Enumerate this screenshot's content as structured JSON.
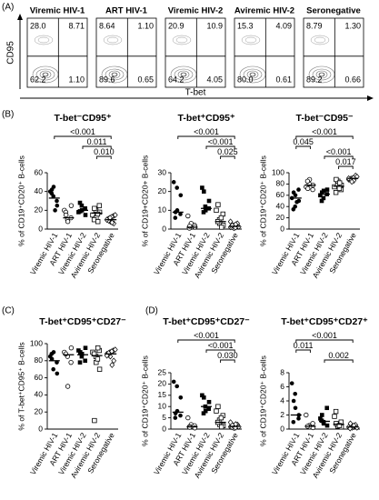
{
  "panel_labels": [
    "(A)",
    "(B)",
    "(C)",
    "(D)"
  ],
  "flow": {
    "y_axis_label": "CD95",
    "x_axis_label": "T-bet",
    "plots": [
      {
        "title": "Viremic HIV-1",
        "quadrants": [
          "28.0",
          "8.71",
          "62.2",
          "1.10"
        ]
      },
      {
        "title": "ART HIV-1",
        "quadrants": [
          "8.64",
          "1.10",
          "89.6",
          "0.65"
        ]
      },
      {
        "title": "Viremic HIV-2",
        "quadrants": [
          "20.9",
          "10.9",
          "64.2",
          "4.05"
        ]
      },
      {
        "title": "Aviremic HIV-2",
        "quadrants": [
          "15.3",
          "4.09",
          "80.0",
          "0.61"
        ]
      },
      {
        "title": "Seronegative",
        "quadrants": [
          "8.79",
          "1.30",
          "89.2",
          "0.66"
        ]
      }
    ]
  },
  "chart_data": [
    {
      "type": "strip",
      "title": "T-bet⁻CD95⁺",
      "y_label": "% of CD19⁺CD20⁺ B-cells",
      "categories": [
        "Viremic HIV-1",
        "ART HIV-1",
        "Viremic HIV-2",
        "Aviremic HIV-2",
        "Seronegative"
      ],
      "points": [
        [
          40,
          35,
          45,
          30,
          25,
          38,
          42,
          20
        ],
        [
          20,
          10,
          8,
          12,
          25,
          18,
          15
        ],
        [
          18,
          25,
          20,
          22,
          15,
          28,
          19
        ],
        [
          15,
          20,
          12,
          25,
          18,
          10,
          22,
          16,
          8
        ],
        [
          10,
          12,
          8,
          14,
          6,
          11,
          9,
          13,
          7,
          15,
          10,
          12
        ]
      ],
      "medians": [
        33,
        12,
        20,
        17,
        10
      ],
      "ylim": [
        0,
        60
      ],
      "yticks": [
        0,
        20,
        40,
        60
      ],
      "comparisons": [
        {
          "label": "<0.001",
          "from": 0,
          "to": 4
        },
        {
          "label": "0.011",
          "from": 2,
          "to": 4
        },
        {
          "label": "0.010",
          "from": 3,
          "to": 4
        }
      ]
    },
    {
      "type": "strip",
      "title": "T-bet⁺CD95⁺",
      "y_label": "% of CD19+CD20+ B-cells",
      "categories": [
        "Viremic HIV-1",
        "ART HIV-1",
        "Viremic HIV-2",
        "Aviremic HIV-2",
        "Seronegative"
      ],
      "points": [
        [
          25,
          22,
          10,
          8,
          18,
          6,
          9
        ],
        [
          7,
          3,
          1,
          2,
          1,
          0.5,
          1.5
        ],
        [
          22,
          12,
          10,
          11,
          15,
          9,
          20
        ],
        [
          10,
          5,
          3,
          8,
          2,
          4,
          13,
          6,
          1
        ],
        [
          1,
          2,
          0.5,
          1.5,
          3,
          1,
          2,
          0.8,
          2.5,
          1.2,
          4
        ]
      ],
      "medians": [
        9,
        1,
        11,
        4,
        1.5
      ],
      "ylim": [
        0,
        30
      ],
      "yticks": [
        0,
        10,
        20,
        30
      ],
      "comparisons": [
        {
          "label": "<0.001",
          "from": 0,
          "to": 4
        },
        {
          "label": "<0.001",
          "from": 2,
          "to": 4
        },
        {
          "label": "0.025",
          "from": 3,
          "to": 4
        }
      ]
    },
    {
      "type": "strip",
      "title": "T-bet⁻CD95⁻",
      "y_label": "% of CD19⁺CD20⁺ B-cells",
      "categories": [
        "Viremic HIV-1",
        "ART HIV-1",
        "Viremic HIV-2",
        "Aviremic HIV-2",
        "Seronegative"
      ],
      "points": [
        [
          55,
          40,
          60,
          70,
          50,
          35,
          65,
          48
        ],
        [
          75,
          80,
          88,
          70,
          78,
          85,
          72
        ],
        [
          60,
          55,
          68,
          62,
          70,
          50,
          65
        ],
        [
          75,
          80,
          85,
          70,
          78,
          65,
          88,
          72,
          82
        ],
        [
          88,
          90,
          85,
          92,
          95,
          87,
          89,
          91,
          86,
          93,
          90,
          84
        ]
      ],
      "medians": [
        55,
        78,
        62,
        76,
        90
      ],
      "ylim": [
        0,
        100
      ],
      "yticks": [
        0,
        20,
        40,
        60,
        80,
        100
      ],
      "comparisons": [
        {
          "label": "<0.001",
          "from": 0,
          "to": 4
        },
        {
          "label": "0.045",
          "from": 0,
          "to": 1
        },
        {
          "label": "<0.001",
          "from": 2,
          "to": 4
        },
        {
          "label": "0.017",
          "from": 3,
          "to": 4
        }
      ]
    },
    {
      "type": "strip",
      "title": "T-bet⁺CD95⁺CD27⁻",
      "y_label": "% of T-bet⁺CD95⁺ B-cells",
      "categories": [
        "Viremic HIV-1",
        "ART HIV-1",
        "Viremic HIV-2",
        "Aviremic HIV-2",
        "Seronegative"
      ],
      "points": [
        [
          85,
          70,
          90,
          78,
          65,
          88,
          82
        ],
        [
          90,
          85,
          50,
          78,
          95,
          88
        ],
        [
          92,
          85,
          88,
          80,
          95,
          78,
          90
        ],
        [
          90,
          85,
          78,
          92,
          70,
          88,
          10,
          82,
          95
        ],
        [
          88,
          90,
          85,
          92,
          80,
          87,
          89,
          91,
          75,
          93,
          86
        ]
      ],
      "medians": [
        80,
        87,
        87,
        86,
        88
      ],
      "ylim": [
        0,
        100
      ],
      "yticks": [
        0,
        20,
        40,
        60,
        80,
        100
      ],
      "comparisons": []
    },
    {
      "type": "strip",
      "title": "T-bet⁺CD95⁺CD27⁻",
      "y_label": "% of CD19⁺CD20⁺ B-cells",
      "categories": [
        "Viremic HIV-1",
        "ART HIV-1",
        "Viremic HIV-2",
        "Aviremic HIV-2",
        "Seronegative"
      ],
      "points": [
        [
          21,
          19,
          8,
          6,
          14,
          5,
          7
        ],
        [
          5,
          2,
          1,
          1.5,
          0.5,
          1,
          0.8
        ],
        [
          15,
          10,
          8,
          9,
          12,
          7,
          14
        ],
        [
          8,
          4,
          2,
          6,
          1.5,
          3,
          10,
          5,
          1
        ],
        [
          1,
          1.5,
          0.5,
          1.2,
          2,
          0.8,
          1.8,
          0.6,
          2.2,
          1,
          3
        ]
      ],
      "medians": [
        7.5,
        1,
        10,
        3,
        1.2
      ],
      "ylim": [
        0,
        25
      ],
      "yticks": [
        0,
        5,
        10,
        15,
        20,
        25
      ],
      "comparisons": [
        {
          "label": "<0.001",
          "from": 0,
          "to": 4
        },
        {
          "label": "<0.001",
          "from": 2,
          "to": 4
        },
        {
          "label": "0.030",
          "from": 3,
          "to": 4
        }
      ]
    },
    {
      "type": "strip",
      "title": "T-bet⁺CD95⁺CD27⁺",
      "y_label": "% of CD19⁺CD20⁺ B-cells",
      "categories": [
        "Viremic HIV-1",
        "ART HIV-1",
        "Viremic HIV-2",
        "Aviremic HIV-2",
        "Seronegative"
      ],
      "points": [
        [
          6.5,
          5,
          3,
          1.5,
          2,
          1,
          4
        ],
        [
          2,
          0.5,
          0.3,
          0.8,
          0.2,
          0.4
        ],
        [
          1.5,
          1,
          0.8,
          3,
          0.5,
          1.2,
          2
        ],
        [
          1.8,
          0.6,
          0.4,
          1,
          0.3,
          2.5,
          0.8,
          0.5
        ],
        [
          0.3,
          0.5,
          0.2,
          0.4,
          0.6,
          0.1,
          0.8,
          0.3,
          0.5,
          0.2
        ]
      ],
      "medians": [
        2,
        0.4,
        1.1,
        0.7,
        0.3
      ],
      "ylim": [
        0,
        8
      ],
      "yticks": [
        0,
        2,
        4,
        6,
        8
      ],
      "comparisons": [
        {
          "label": "<0.001",
          "from": 0,
          "to": 4
        },
        {
          "label": "0.011",
          "from": 0,
          "to": 1
        },
        {
          "label": "0.002",
          "from": 2,
          "to": 4
        }
      ]
    }
  ]
}
